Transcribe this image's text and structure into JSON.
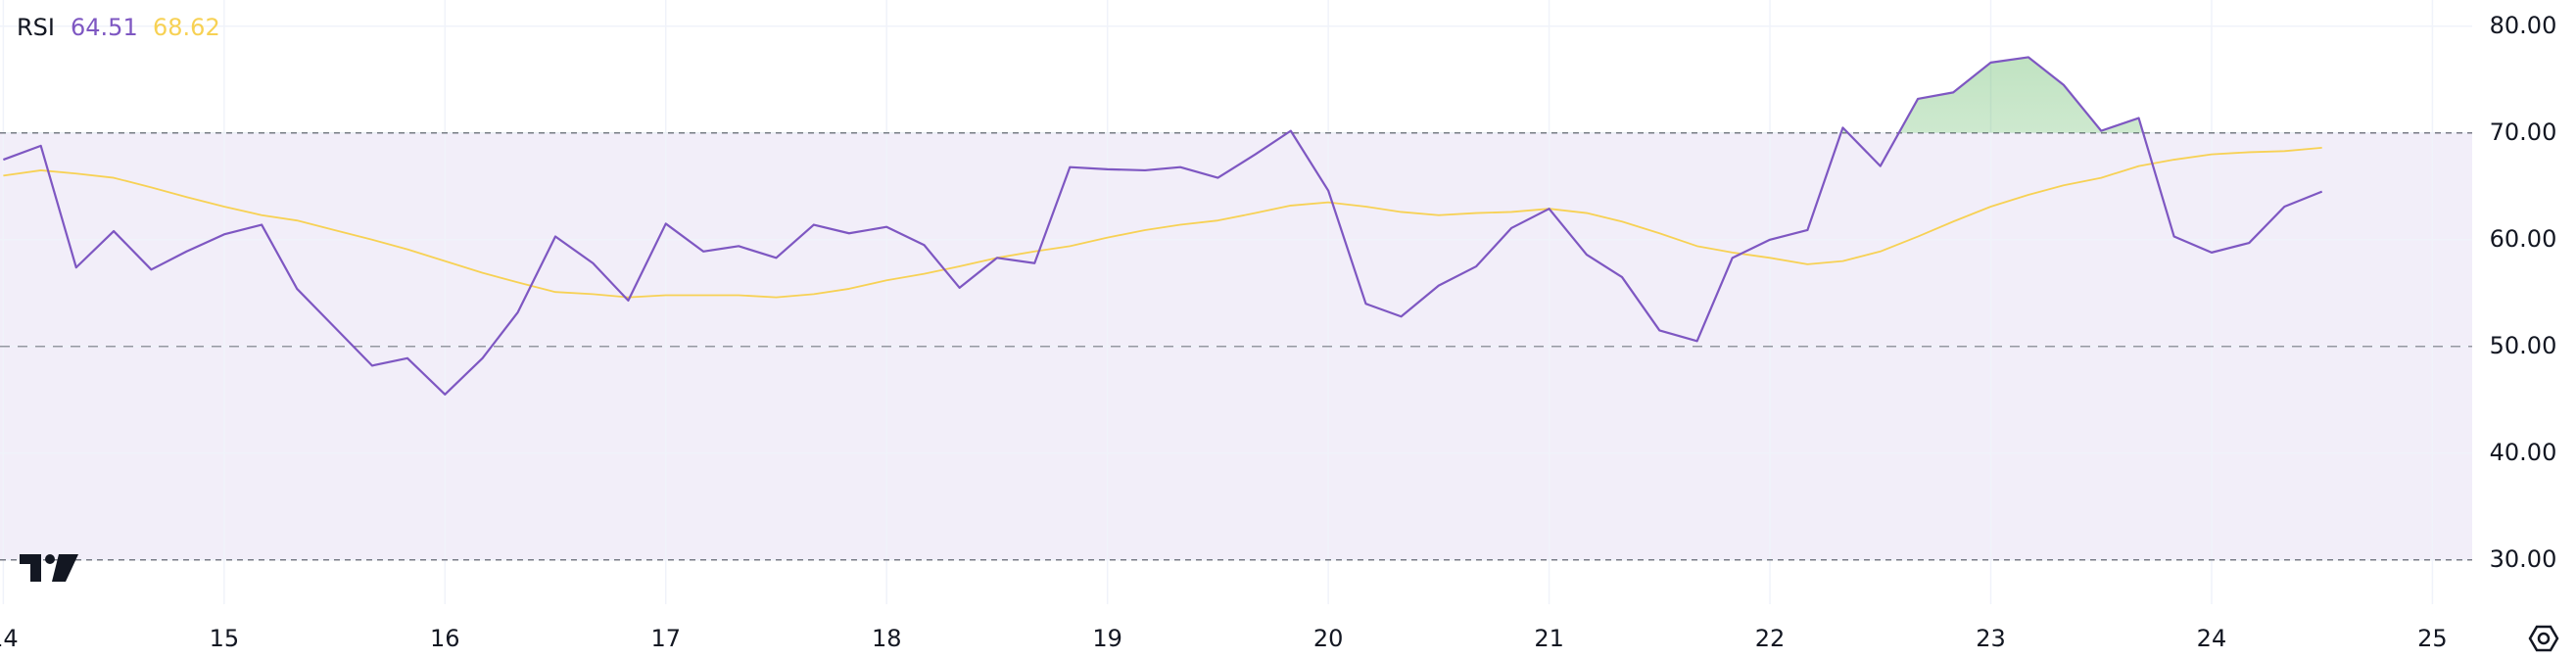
{
  "chart_data": {
    "type": "line",
    "title": "RSI",
    "x": [
      14,
      14.17,
      14.33,
      14.5,
      14.67,
      14.83,
      15,
      15.17,
      15.33,
      15.5,
      15.67,
      15.83,
      16,
      16.17,
      16.33,
      16.5,
      16.67,
      16.83,
      17,
      17.17,
      17.33,
      17.5,
      17.67,
      17.83,
      18,
      18.17,
      18.33,
      18.5,
      18.67,
      18.83,
      19,
      19.17,
      19.33,
      19.5,
      19.67,
      19.83,
      20,
      20.17,
      20.33,
      20.5,
      20.67,
      20.83,
      21,
      21.17,
      21.33,
      21.5,
      21.67,
      21.83,
      22,
      22.17,
      22.33,
      22.5,
      22.67,
      22.83,
      23,
      23.17,
      23.33,
      23.5,
      23.67,
      23.83,
      24,
      24.17,
      24.33,
      24.5
    ],
    "series": [
      {
        "color": "#7e57c2",
        "values": [
          67.5,
          68.8,
          57.4,
          60.8,
          57.2,
          58.9,
          60.5,
          61.4,
          55.4,
          51.8,
          48.2,
          48.9,
          45.5,
          48.9,
          53.2,
          60.3,
          57.8,
          54.3,
          61.5,
          58.9,
          59.4,
          58.3,
          61.4,
          60.6,
          61.2,
          59.5,
          55.5,
          58.3,
          57.8,
          66.8,
          66.6,
          66.5,
          66.8,
          65.8,
          68.0,
          70.2,
          64.6,
          54.0,
          52.8,
          55.7,
          57.5,
          61.1,
          62.9,
          58.6,
          56.5,
          51.5,
          50.5,
          58.3,
          60.0,
          60.9,
          70.5,
          66.9,
          73.2,
          73.8,
          76.6,
          77.1,
          74.5,
          70.2,
          71.4,
          60.3,
          58.8,
          59.7,
          63.1,
          64.51
        ]
      },
      {
        "color": "#f7d154",
        "values": [
          66.0,
          66.5,
          66.2,
          65.8,
          64.9,
          64.0,
          63.1,
          62.3,
          61.8,
          60.9,
          60.0,
          59.1,
          58.0,
          56.9,
          56.0,
          55.1,
          54.9,
          54.6,
          54.8,
          54.8,
          54.8,
          54.6,
          54.9,
          55.4,
          56.2,
          56.8,
          57.5,
          58.3,
          58.9,
          59.4,
          60.2,
          60.9,
          61.4,
          61.8,
          62.5,
          63.2,
          63.5,
          63.1,
          62.6,
          62.3,
          62.5,
          62.6,
          62.9,
          62.5,
          61.7,
          60.6,
          59.4,
          58.8,
          58.3,
          57.7,
          58.0,
          58.9,
          60.3,
          61.7,
          63.1,
          64.2,
          65.1,
          65.8,
          66.9,
          67.5,
          68.0,
          68.2,
          68.3,
          68.62
        ]
      }
    ],
    "xlim": [
      13.985,
      25.18
    ],
    "xticks": [
      14,
      15,
      16,
      17,
      18,
      19,
      20,
      21,
      22,
      23,
      24,
      25
    ],
    "ylim": [
      25.85,
      82.46
    ],
    "yticks": [
      {
        "value": 30,
        "label": "30.00"
      },
      {
        "value": 40,
        "label": "40.00"
      },
      {
        "value": 50,
        "label": "50.00"
      },
      {
        "value": 60,
        "label": "60.00"
      },
      {
        "value": 70,
        "label": "70.00"
      },
      {
        "value": 80,
        "label": "80.00"
      }
    ],
    "bands": {
      "upper": 70,
      "middle": 50,
      "lower": 30,
      "fill": "#7e57c2"
    },
    "overbought_fill": "#4caf50",
    "grid": true
  }
}
